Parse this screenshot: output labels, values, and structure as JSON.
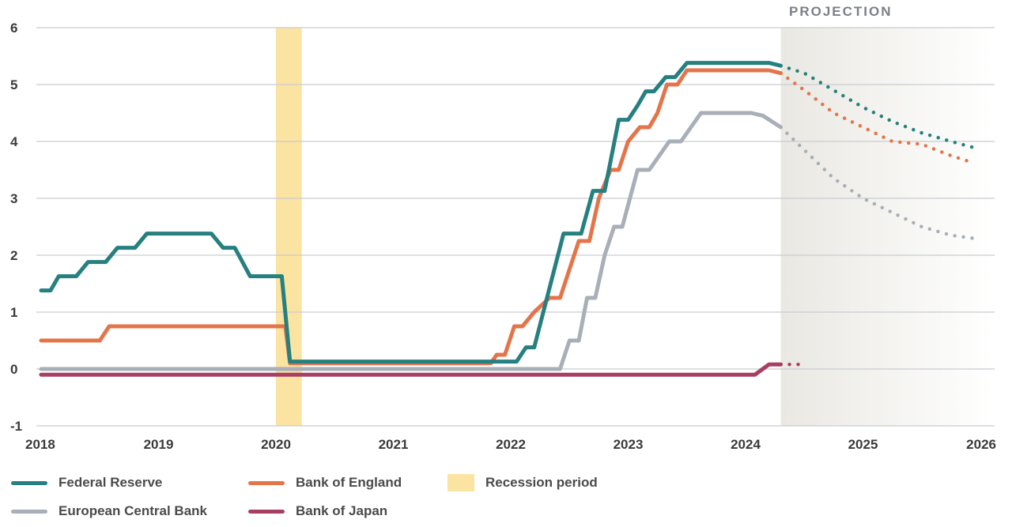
{
  "chart_data": {
    "type": "line",
    "title": "",
    "xlabel": "",
    "ylabel": "",
    "xlim": [
      2018,
      2026
    ],
    "ylim": [
      -1,
      6
    ],
    "y_ticks": [
      "6",
      "5",
      "4",
      "3",
      "2",
      "1",
      "0",
      "-1"
    ],
    "x_ticks": [
      "2018",
      "2019",
      "2020",
      "2021",
      "2022",
      "2023",
      "2024",
      "2025",
      "2026"
    ],
    "recession_period": [
      2020.0,
      2020.22
    ],
    "projection_start": 2024.3,
    "projection_label": "PROJECTION",
    "series": [
      {
        "name": "Federal Reserve",
        "color": "#25807f",
        "actual": [
          [
            2018.0,
            1.38
          ],
          [
            2018.08,
            1.38
          ],
          [
            2018.15,
            1.63
          ],
          [
            2018.3,
            1.63
          ],
          [
            2018.4,
            1.88
          ],
          [
            2018.55,
            1.88
          ],
          [
            2018.65,
            2.13
          ],
          [
            2018.8,
            2.13
          ],
          [
            2018.9,
            2.38
          ],
          [
            2019.45,
            2.38
          ],
          [
            2019.55,
            2.13
          ],
          [
            2019.65,
            2.13
          ],
          [
            2019.78,
            1.63
          ],
          [
            2020.05,
            1.63
          ],
          [
            2020.12,
            0.13
          ],
          [
            2021.95,
            0.13
          ],
          [
            2022.05,
            0.13
          ],
          [
            2022.13,
            0.38
          ],
          [
            2022.2,
            0.38
          ],
          [
            2022.45,
            2.38
          ],
          [
            2022.55,
            2.38
          ],
          [
            2022.6,
            2.38
          ],
          [
            2022.7,
            3.13
          ],
          [
            2022.8,
            3.13
          ],
          [
            2022.92,
            4.38
          ],
          [
            2023.0,
            4.38
          ],
          [
            2023.08,
            4.63
          ],
          [
            2023.15,
            4.88
          ],
          [
            2023.22,
            4.88
          ],
          [
            2023.32,
            5.13
          ],
          [
            2023.4,
            5.13
          ],
          [
            2023.5,
            5.38
          ],
          [
            2024.2,
            5.38
          ],
          [
            2024.3,
            5.33
          ]
        ],
        "projection": [
          [
            2024.3,
            5.33
          ],
          [
            2024.5,
            5.2
          ],
          [
            2024.75,
            4.9
          ],
          [
            2025.0,
            4.6
          ],
          [
            2025.25,
            4.35
          ],
          [
            2025.5,
            4.15
          ],
          [
            2025.75,
            4.0
          ],
          [
            2025.93,
            3.9
          ]
        ]
      },
      {
        "name": "Bank of England",
        "color": "#e4744a",
        "actual": [
          [
            2018.0,
            0.5
          ],
          [
            2018.5,
            0.5
          ],
          [
            2018.58,
            0.75
          ],
          [
            2020.08,
            0.75
          ],
          [
            2020.12,
            0.1
          ],
          [
            2021.83,
            0.1
          ],
          [
            2021.88,
            0.25
          ],
          [
            2021.95,
            0.25
          ],
          [
            2022.03,
            0.75
          ],
          [
            2022.1,
            0.75
          ],
          [
            2022.2,
            1.0
          ],
          [
            2022.33,
            1.25
          ],
          [
            2022.42,
            1.25
          ],
          [
            2022.58,
            2.25
          ],
          [
            2022.67,
            2.25
          ],
          [
            2022.75,
            3.0
          ],
          [
            2022.85,
            3.5
          ],
          [
            2022.92,
            3.5
          ],
          [
            2023.0,
            4.0
          ],
          [
            2023.1,
            4.25
          ],
          [
            2023.18,
            4.25
          ],
          [
            2023.25,
            4.5
          ],
          [
            2023.33,
            5.0
          ],
          [
            2023.42,
            5.0
          ],
          [
            2023.5,
            5.25
          ],
          [
            2024.2,
            5.25
          ],
          [
            2024.3,
            5.2
          ]
        ],
        "projection": [
          [
            2024.3,
            5.2
          ],
          [
            2024.5,
            4.9
          ],
          [
            2024.75,
            4.5
          ],
          [
            2025.0,
            4.25
          ],
          [
            2025.25,
            4.0
          ],
          [
            2025.5,
            3.95
          ],
          [
            2025.75,
            3.75
          ],
          [
            2025.93,
            3.63
          ]
        ]
      },
      {
        "name": "European Central Bank",
        "color": "#a9afb8",
        "actual": [
          [
            2018.0,
            0.0
          ],
          [
            2022.42,
            0.0
          ],
          [
            2022.5,
            0.5
          ],
          [
            2022.58,
            0.5
          ],
          [
            2022.65,
            1.25
          ],
          [
            2022.72,
            1.25
          ],
          [
            2022.8,
            2.0
          ],
          [
            2022.88,
            2.5
          ],
          [
            2022.95,
            2.5
          ],
          [
            2023.08,
            3.5
          ],
          [
            2023.18,
            3.5
          ],
          [
            2023.35,
            4.0
          ],
          [
            2023.45,
            4.0
          ],
          [
            2023.62,
            4.5
          ],
          [
            2024.05,
            4.5
          ],
          [
            2024.15,
            4.45
          ],
          [
            2024.3,
            4.25
          ]
        ],
        "projection": [
          [
            2024.3,
            4.25
          ],
          [
            2024.5,
            3.85
          ],
          [
            2024.75,
            3.35
          ],
          [
            2025.0,
            3.0
          ],
          [
            2025.25,
            2.75
          ],
          [
            2025.5,
            2.5
          ],
          [
            2025.75,
            2.35
          ],
          [
            2025.93,
            2.3
          ]
        ]
      },
      {
        "name": "Bank of Japan",
        "color": "#a83f62",
        "actual": [
          [
            2018.0,
            -0.1
          ],
          [
            2024.08,
            -0.1
          ],
          [
            2024.2,
            0.08
          ],
          [
            2024.3,
            0.08
          ]
        ],
        "projection": [
          [
            2024.3,
            0.08
          ],
          [
            2024.52,
            0.08
          ]
        ]
      }
    ]
  },
  "legend": {
    "federal_reserve": "Federal Reserve",
    "bank_of_england": "Bank of England",
    "recession_period": "Recession period",
    "european_central_bank": "European Central Bank",
    "bank_of_japan": "Bank of Japan"
  },
  "colors": {
    "grid": "#c9ccd1",
    "recession": "#fbe3a1",
    "projection_shade": "#eeede8"
  }
}
